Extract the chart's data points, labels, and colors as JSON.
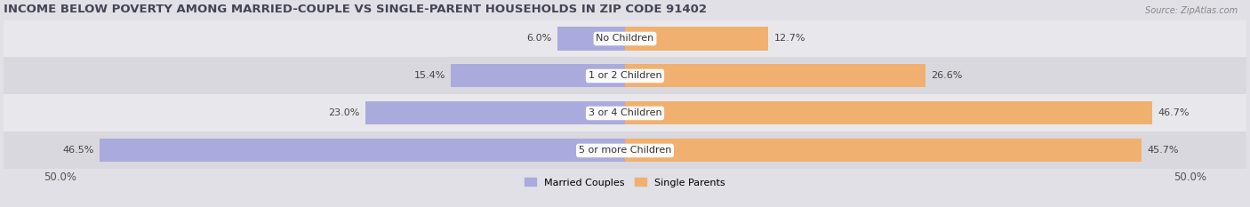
{
  "title": "INCOME BELOW POVERTY AMONG MARRIED-COUPLE VS SINGLE-PARENT HOUSEHOLDS IN ZIP CODE 91402",
  "source": "Source: ZipAtlas.com",
  "categories": [
    "No Children",
    "1 or 2 Children",
    "3 or 4 Children",
    "5 or more Children"
  ],
  "married_values": [
    6.0,
    15.4,
    23.0,
    46.5
  ],
  "single_values": [
    12.7,
    26.6,
    46.7,
    45.7
  ],
  "max_val": 50.0,
  "married_color": "#aaaadd",
  "single_color": "#f0b070",
  "bar_height": 0.62,
  "title_fontsize": 9.5,
  "label_fontsize": 8,
  "tick_fontsize": 8.5,
  "legend_labels": [
    "Married Couples",
    "Single Parents"
  ],
  "row_colors_even": "#e8e8ec",
  "row_colors_odd": "#d8d8de",
  "bg_color": "#e0e0e6"
}
